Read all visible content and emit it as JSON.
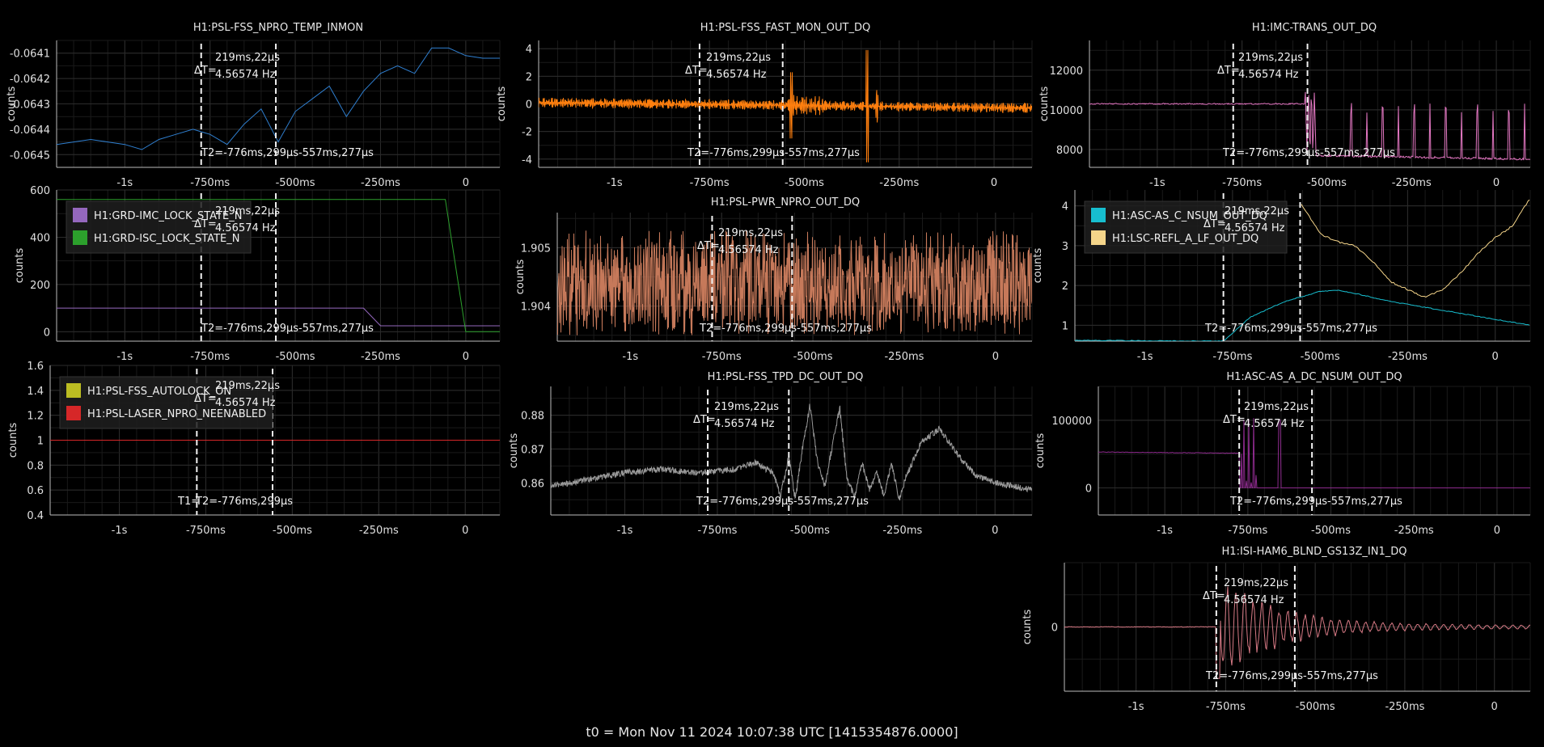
{
  "footer": {
    "t0": "t0 = Mon Nov 11 2024 10:07:38 UTC [1415354876.0000]"
  },
  "cursor_labels": {
    "dt_symbol": "ΔT=",
    "dt_value": "219ms,22µs",
    "dt_freq": "4.56574 Hz",
    "t1": "T1=",
    "t2": "T2=-776ms,299µs",
    "t3": "-557ms,277µs"
  },
  "chart_data": [
    {
      "id": "fss-npro-temp",
      "type": "line",
      "title": "H1:PSL-FSS_NPRO_TEMP_INMON",
      "ylabel": "counts",
      "xlim": [
        -1.2,
        0.1
      ],
      "ylim": [
        -0.06455,
        -0.06405
      ],
      "yticks": [
        -0.0641,
        -0.0642,
        -0.0643,
        -0.0644,
        -0.0645
      ],
      "ytick_labels": [
        "-0.0641",
        "-0.0642",
        "-0.0643",
        "-0.0644",
        "-0.0645"
      ],
      "cursors": [
        -0.776,
        -0.557
      ],
      "series": [
        {
          "color": "#2f7fd0",
          "x": [
            -1.2,
            -1.15,
            -1.1,
            -1.05,
            -1.0,
            -0.95,
            -0.9,
            -0.85,
            -0.8,
            -0.75,
            -0.7,
            -0.65,
            -0.6,
            -0.55,
            -0.5,
            -0.45,
            -0.4,
            -0.35,
            -0.3,
            -0.25,
            -0.2,
            -0.15,
            -0.1,
            -0.05,
            0.0,
            0.05,
            0.1
          ],
          "y": [
            -0.06446,
            -0.06445,
            -0.06444,
            -0.06445,
            -0.06446,
            -0.06448,
            -0.06444,
            -0.06442,
            -0.0644,
            -0.06442,
            -0.06446,
            -0.06438,
            -0.06432,
            -0.06445,
            -0.06433,
            -0.06428,
            -0.06423,
            -0.06435,
            -0.06425,
            -0.06418,
            -0.06415,
            -0.06418,
            -0.06408,
            -0.06408,
            -0.06411,
            -0.06412,
            -0.06412
          ]
        }
      ]
    },
    {
      "id": "fss-fast-mon",
      "type": "line",
      "title": "H1:PSL-FSS_FAST_MON_OUT_DQ",
      "ylabel": "counts",
      "xlim": [
        -1.2,
        0.1
      ],
      "ylim": [
        -4.6,
        4.6
      ],
      "yticks": [
        4,
        2,
        0,
        -2,
        -4
      ],
      "ytick_labels": [
        "4",
        "2",
        "0",
        "-2",
        "-4"
      ],
      "cursors": [
        -0.776,
        -0.557
      ],
      "series": [
        {
          "color": "#ff7f0e",
          "x": [
            -1.2,
            0.1
          ],
          "y": [
            0.1,
            -0.3
          ]
        }
      ]
    },
    {
      "id": "imc-trans",
      "type": "line",
      "title": "H1:IMC-TRANS_OUT_DQ",
      "ylabel": "counts",
      "xlim": [
        -1.2,
        0.1
      ],
      "ylim": [
        7100,
        13500
      ],
      "yticks": [
        12000,
        10000,
        8000
      ],
      "ytick_labels": [
        "12000",
        "10000",
        "8000"
      ],
      "cursors": [
        -0.776,
        -0.557
      ],
      "series": [
        {
          "color": "#e377c2",
          "x": [
            -1.2,
            -0.557,
            -0.52,
            0.1
          ],
          "y": [
            10300,
            10300,
            7700,
            7500
          ]
        }
      ]
    },
    {
      "id": "grd-states",
      "type": "line",
      "title": "",
      "ylabel": "counts",
      "xlim": [
        -1.2,
        0.1
      ],
      "ylim": [
        -40,
        600
      ],
      "yticks": [
        600,
        400,
        200,
        0
      ],
      "ytick_labels": [
        "600",
        "400",
        "200",
        "0"
      ],
      "cursors": [
        -0.776,
        -0.557
      ],
      "legend": "top-left",
      "series": [
        {
          "name": "H1:GRD-IMC_LOCK_STATE_N",
          "color": "#9467bd",
          "x": [
            -1.2,
            -0.3,
            -0.25,
            0.1
          ],
          "y": [
            100,
            100,
            25,
            25
          ]
        },
        {
          "name": "H1:GRD-ISC_LOCK_STATE_N",
          "color": "#2ca02c",
          "x": [
            -1.2,
            -0.06,
            0.0,
            0.1
          ],
          "y": [
            560,
            560,
            0,
            0
          ]
        }
      ]
    },
    {
      "id": "pwr-npro",
      "type": "line",
      "title": "H1:PSL-PWR_NPRO_OUT_DQ",
      "ylabel": "counts",
      "xlim": [
        -1.2,
        0.1
      ],
      "ylim": [
        1.9034,
        1.9056
      ],
      "yticks": [
        1.905,
        1.904
      ],
      "ytick_labels": [
        "1.905",
        "1.904"
      ],
      "cursors": [
        -0.776,
        -0.557
      ],
      "series": [
        {
          "color": "#c6795a",
          "x": [
            -1.2,
            0.1
          ],
          "y": [
            1.9044,
            1.9044
          ]
        }
      ]
    },
    {
      "id": "asc-lsc",
      "type": "line",
      "title": "",
      "ylabel": "counts",
      "xlim": [
        -1.2,
        0.1
      ],
      "ylim": [
        0.6,
        4.4
      ],
      "yticks": [
        4,
        3,
        2,
        1
      ],
      "ytick_labels": [
        "4",
        "3",
        "2",
        "1"
      ],
      "cursors": [
        -0.776,
        -0.557
      ],
      "legend": "top-left",
      "series": [
        {
          "name": "H1:ASC-AS_C_NSUM_OUT_DQ",
          "color": "#17becf",
          "x": [
            -1.2,
            -0.776,
            -0.7,
            -0.6,
            -0.5,
            -0.45,
            -0.4,
            -0.3,
            -0.2,
            -0.1,
            0.0,
            0.1
          ],
          "y": [
            0.62,
            0.6,
            1.2,
            1.6,
            1.85,
            1.88,
            1.8,
            1.6,
            1.45,
            1.3,
            1.15,
            1.0
          ]
        },
        {
          "name": "H1:LSC-REFL_A_LF_OUT_DQ",
          "color": "#f5d58a",
          "x": [
            -0.557,
            -0.5,
            -0.45,
            -0.4,
            -0.35,
            -0.3,
            -0.25,
            -0.2,
            -0.15,
            -0.1,
            -0.05,
            0.0,
            0.05,
            0.1
          ],
          "y": [
            4.1,
            3.3,
            3.1,
            3.0,
            2.6,
            2.1,
            1.9,
            1.7,
            1.9,
            2.3,
            2.8,
            3.2,
            3.5,
            4.2
          ]
        }
      ]
    },
    {
      "id": "fss-autolock",
      "type": "line",
      "title": "",
      "ylabel": "counts",
      "xlim": [
        -1.2,
        0.1
      ],
      "ylim": [
        0.4,
        1.6
      ],
      "yticks": [
        1.6,
        1.4,
        1.2,
        1,
        0.8,
        0.6,
        0.4
      ],
      "ytick_labels": [
        "1.6",
        "1.4",
        "1.2",
        "1",
        "0.8",
        "0.6",
        "0.4"
      ],
      "cursors": [
        -0.776,
        -0.557
      ],
      "legend": "top-left",
      "series": [
        {
          "name": "H1:PSL-FSS_AUTOLOCK_ON",
          "color": "#bcbd22",
          "x": [
            -1.2,
            0.1
          ],
          "y": [
            1,
            1
          ]
        },
        {
          "name": "H1:PSL-LASER_NPRO_NEENABLED",
          "color": "#d62728",
          "x": [
            -1.2,
            0.1
          ],
          "y": [
            1,
            1
          ]
        }
      ]
    },
    {
      "id": "fss-tpd",
      "type": "line",
      "title": "H1:PSL-FSS_TPD_DC_OUT_DQ",
      "ylabel": "counts",
      "xlim": [
        -1.2,
        0.1
      ],
      "ylim": [
        0.8505,
        0.8885
      ],
      "yticks": [
        0.88,
        0.87,
        0.86
      ],
      "ytick_labels": [
        "0.88",
        "0.87",
        "0.86"
      ],
      "cursors": [
        -0.776,
        -0.557
      ],
      "series": [
        {
          "color": "#9a9a9a",
          "x": [
            -1.2,
            -1.1,
            -1.0,
            -0.9,
            -0.8,
            -0.7,
            -0.65,
            -0.6,
            -0.58,
            -0.557,
            -0.54,
            -0.52,
            -0.5,
            -0.48,
            -0.46,
            -0.44,
            -0.42,
            -0.4,
            -0.38,
            -0.36,
            -0.34,
            -0.32,
            -0.3,
            -0.28,
            -0.26,
            -0.24,
            -0.2,
            -0.15,
            -0.1,
            -0.05,
            0.0,
            0.1
          ],
          "y": [
            0.859,
            0.861,
            0.863,
            0.864,
            0.863,
            0.864,
            0.866,
            0.863,
            0.856,
            0.868,
            0.855,
            0.871,
            0.883,
            0.866,
            0.859,
            0.871,
            0.882,
            0.861,
            0.856,
            0.866,
            0.858,
            0.863,
            0.856,
            0.866,
            0.855,
            0.862,
            0.872,
            0.876,
            0.868,
            0.862,
            0.86,
            0.858
          ]
        }
      ]
    },
    {
      "id": "asc-as-a",
      "type": "line",
      "title": "H1:ASC-AS_A_DC_NSUM_OUT_DQ",
      "ylabel": "counts",
      "xlim": [
        -1.2,
        0.1
      ],
      "ylim": [
        -40000,
        150000
      ],
      "yticks": [
        100000,
        0
      ],
      "ytick_labels": [
        "100000",
        "0"
      ],
      "cursors": [
        -0.776,
        -0.557
      ],
      "series": [
        {
          "color": "#8c2a8c",
          "x": [
            -1.2,
            -0.776,
            -0.76,
            -0.7,
            -0.1,
            0.1
          ],
          "y": [
            53000,
            50000,
            0,
            0,
            0,
            0
          ]
        }
      ]
    },
    {
      "id": "isi-ham6",
      "type": "line",
      "title": "H1:ISI-HAM6_BLND_GS13Z_IN1_DQ",
      "ylabel": "counts",
      "xlim": [
        -1.2,
        0.1
      ],
      "ylim": [
        -1,
        1
      ],
      "yticks": [
        0
      ],
      "ytick_labels": [
        "0"
      ],
      "cursors": [
        -0.776,
        -0.557
      ],
      "series": [
        {
          "color": "#d77a85",
          "x": [
            -1.2,
            -0.776,
            0.1
          ],
          "y": [
            0,
            0,
            0
          ]
        }
      ]
    }
  ]
}
